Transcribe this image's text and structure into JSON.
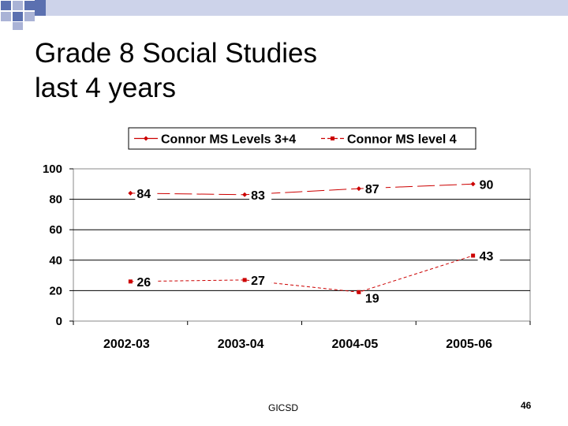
{
  "slide": {
    "title_lines": [
      "Grade 8 Social Studies",
      "last 4 years"
    ],
    "footer": "GICSD",
    "page_number": "46",
    "accent_colors": [
      "#5b70b0",
      "#aab3d6",
      "#ffffff"
    ]
  },
  "chart_data": {
    "type": "line",
    "title": "",
    "xlabel": "",
    "ylabel": "",
    "categories": [
      "2002-03",
      "2003-04",
      "2004-05",
      "2005-06"
    ],
    "ylim": [
      0,
      100
    ],
    "yticks": [
      0,
      20,
      40,
      60,
      80,
      100
    ],
    "grid": true,
    "legend_position": "top",
    "series": [
      {
        "name": "Connor MS Levels 3+4",
        "values": [
          84,
          83,
          87,
          90
        ],
        "color": "#cc0000",
        "dash": "long-dash",
        "marker": "diamond"
      },
      {
        "name": "Connor MS level 4",
        "values": [
          26,
          27,
          19,
          43
        ],
        "color": "#cc0000",
        "dash": "short-dash",
        "marker": "square"
      }
    ]
  }
}
